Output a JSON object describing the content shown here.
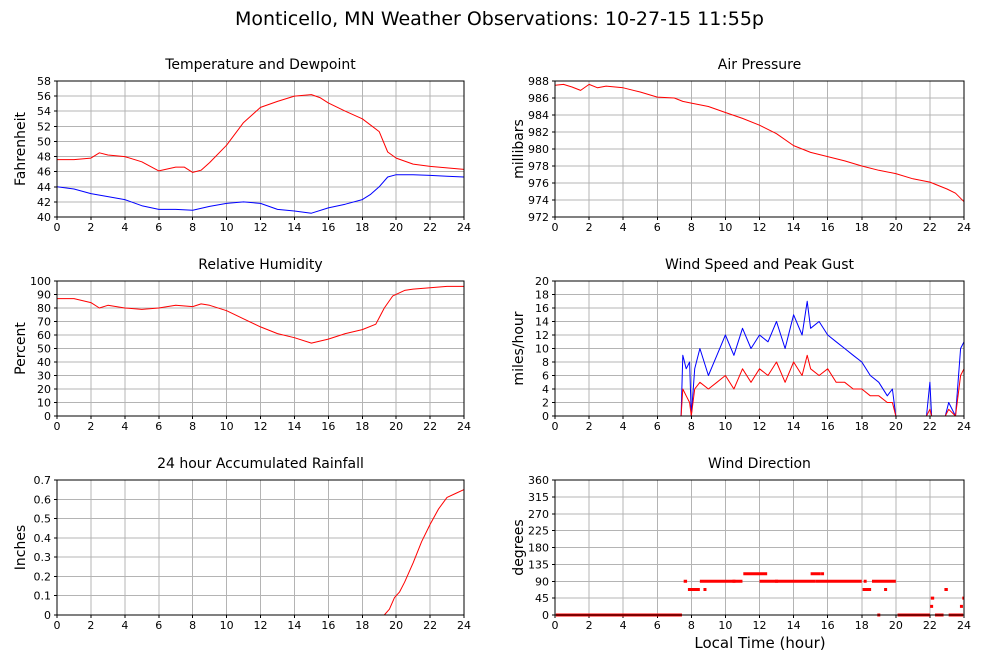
{
  "page": {
    "title": "Monticello, MN Weather Observations: 10-27-15 11:55p",
    "xcaption": "Local Time (hour)"
  },
  "colors": {
    "primary": "#ff0000",
    "secondary": "#0000ff",
    "grid": "#b4b4b4"
  },
  "chart_data": [
    {
      "id": "temp",
      "type": "line",
      "title": "Temperature and Dewpoint",
      "xlabel": "",
      "ylabel": "Fahrenheit",
      "xlim": [
        0,
        24
      ],
      "ylim": [
        40,
        58
      ],
      "xticks": [
        0,
        2,
        4,
        6,
        8,
        10,
        12,
        14,
        16,
        18,
        20,
        22,
        24
      ],
      "yticks": [
        40,
        42,
        44,
        46,
        48,
        50,
        52,
        54,
        56,
        58
      ],
      "grid": true,
      "series": [
        {
          "color": "#ff0000",
          "x": [
            0,
            1,
            2,
            2.5,
            3,
            4,
            5,
            6,
            7,
            7.5,
            8,
            8.5,
            9,
            10,
            11,
            12,
            13,
            14,
            15,
            15.5,
            16,
            17,
            18,
            19,
            19.5,
            20,
            21,
            22,
            23,
            24
          ],
          "y": [
            47.6,
            47.6,
            47.8,
            48.5,
            48.2,
            48.0,
            47.3,
            46.1,
            46.6,
            46.6,
            45.9,
            46.2,
            47.2,
            49.5,
            52.5,
            54.5,
            55.3,
            56.0,
            56.2,
            55.8,
            55.1,
            54.0,
            53.0,
            51.3,
            48.6,
            47.8,
            47.0,
            46.7,
            46.5,
            46.3
          ]
        },
        {
          "color": "#0000ff",
          "x": [
            0,
            1,
            2,
            3,
            4,
            5,
            6,
            7,
            8,
            9,
            10,
            11,
            12,
            13,
            14,
            15,
            16,
            17,
            18,
            18.5,
            19,
            19.5,
            20,
            21,
            22,
            23,
            24
          ],
          "y": [
            44.0,
            43.7,
            43.1,
            42.7,
            42.3,
            41.5,
            41.0,
            41.0,
            40.9,
            41.4,
            41.8,
            42.0,
            41.8,
            41.0,
            40.8,
            40.5,
            41.2,
            41.7,
            42.3,
            43.0,
            44.0,
            45.3,
            45.6,
            45.6,
            45.5,
            45.4,
            45.3
          ]
        }
      ]
    },
    {
      "id": "pressure",
      "type": "line",
      "title": "Air Pressure",
      "xlabel": "",
      "ylabel": "millibars",
      "xlim": [
        0,
        24
      ],
      "ylim": [
        972,
        988
      ],
      "xticks": [
        0,
        2,
        4,
        6,
        8,
        10,
        12,
        14,
        16,
        18,
        20,
        22,
        24
      ],
      "yticks": [
        972,
        974,
        976,
        978,
        980,
        982,
        984,
        986,
        988
      ],
      "grid": true,
      "series": [
        {
          "color": "#ff0000",
          "x": [
            0,
            0.5,
            1,
            1.5,
            2,
            2.5,
            3,
            4,
            5,
            6,
            7,
            7.5,
            8,
            9,
            10,
            11,
            12,
            13,
            14,
            15,
            16,
            17,
            18,
            19,
            20,
            21,
            22,
            23,
            23.5,
            24
          ],
          "y": [
            987.5,
            987.6,
            987.3,
            986.9,
            987.6,
            987.2,
            987.4,
            987.2,
            986.7,
            986.1,
            986.0,
            985.6,
            985.4,
            985.0,
            984.3,
            983.6,
            982.8,
            981.8,
            980.4,
            979.6,
            979.1,
            978.6,
            978.0,
            977.5,
            977.1,
            976.5,
            976.1,
            975.3,
            974.8,
            973.8
          ]
        }
      ]
    },
    {
      "id": "humidity",
      "type": "line",
      "title": "Relative Humidity",
      "xlabel": "",
      "ylabel": "Percent",
      "xlim": [
        0,
        24
      ],
      "ylim": [
        0,
        100
      ],
      "xticks": [
        0,
        2,
        4,
        6,
        8,
        10,
        12,
        14,
        16,
        18,
        20,
        22,
        24
      ],
      "yticks": [
        0,
        10,
        20,
        30,
        40,
        50,
        60,
        70,
        80,
        90,
        100
      ],
      "grid": true,
      "series": [
        {
          "color": "#ff0000",
          "x": [
            0,
            1,
            2,
            2.5,
            3,
            4,
            5,
            6,
            7,
            8,
            8.5,
            9,
            10,
            11,
            12,
            13,
            14,
            15,
            16,
            17,
            18,
            18.8,
            19.3,
            19.8,
            20.5,
            21,
            22,
            23,
            24
          ],
          "y": [
            87,
            87,
            84,
            80,
            82,
            80,
            79,
            80,
            82,
            81,
            83,
            82,
            78,
            72,
            66,
            61,
            58,
            54,
            57,
            61,
            64,
            68,
            80,
            89,
            93,
            94,
            95,
            96,
            96
          ]
        }
      ]
    },
    {
      "id": "wind",
      "type": "line",
      "title": "Wind Speed and Peak Gust",
      "xlabel": "",
      "ylabel": "miles/hour",
      "xlim": [
        0,
        24
      ],
      "ylim": [
        0,
        20
      ],
      "xticks": [
        0,
        2,
        4,
        6,
        8,
        10,
        12,
        14,
        16,
        18,
        20,
        22,
        24
      ],
      "yticks": [
        0,
        2,
        4,
        6,
        8,
        10,
        12,
        14,
        16,
        18,
        20
      ],
      "grid": true,
      "series": [
        {
          "color": "#0000ff",
          "x": [
            0,
            7.4,
            7.5,
            7.7,
            7.9,
            8.0,
            8.2,
            8.5,
            9,
            9.5,
            10,
            10.5,
            11,
            11.5,
            12,
            12.5,
            13,
            13.5,
            14,
            14.5,
            14.8,
            15,
            15.5,
            16,
            16.5,
            17,
            17.5,
            18,
            18.5,
            19,
            19.5,
            19.8,
            20,
            21.8,
            22,
            22.1,
            22.9,
            23.1,
            23.5,
            23.8,
            24
          ],
          "y": [
            0,
            0,
            9,
            7,
            8,
            0,
            7,
            10,
            6,
            9,
            12,
            9,
            13,
            10,
            12,
            11,
            14,
            10,
            15,
            12,
            17,
            13,
            14,
            12,
            11,
            10,
            9,
            8,
            6,
            5,
            3,
            4,
            0,
            0,
            5,
            0,
            0,
            2,
            0,
            10,
            11
          ]
        },
        {
          "color": "#ff0000",
          "x": [
            0,
            7.4,
            7.5,
            7.7,
            7.9,
            8.0,
            8.2,
            8.5,
            9,
            9.5,
            10,
            10.5,
            11,
            11.5,
            12,
            12.5,
            13,
            13.5,
            14,
            14.5,
            14.8,
            15,
            15.5,
            16,
            16.5,
            17,
            17.5,
            18,
            18.5,
            19,
            19.5,
            19.8,
            20,
            21.8,
            22,
            22.1,
            22.9,
            23.1,
            23.5,
            23.8,
            24
          ],
          "y": [
            0,
            0,
            4,
            3,
            2,
            0,
            4,
            5,
            4,
            5,
            6,
            4,
            7,
            5,
            7,
            6,
            8,
            5,
            8,
            6,
            9,
            7,
            6,
            7,
            5,
            5,
            4,
            4,
            3,
            3,
            2,
            2,
            0,
            0,
            1,
            0,
            0,
            1,
            0,
            6,
            7
          ]
        }
      ]
    },
    {
      "id": "rain",
      "type": "line",
      "title": "24 hour Accumulated Rainfall",
      "xlabel": "",
      "ylabel": "Inches",
      "xlim": [
        0,
        24
      ],
      "ylim": [
        0,
        0.7
      ],
      "xticks": [
        0,
        2,
        4,
        6,
        8,
        10,
        12,
        14,
        16,
        18,
        20,
        22,
        24
      ],
      "yticks": [
        0,
        0.1,
        0.2,
        0.3,
        0.4,
        0.5,
        0.6,
        0.7
      ],
      "grid": true,
      "series": [
        {
          "color": "#ff0000",
          "x": [
            0,
            19.3,
            19.6,
            19.9,
            20.2,
            20.5,
            21,
            21.5,
            22,
            22.5,
            23,
            23.5,
            24
          ],
          "y": [
            0,
            0,
            0.03,
            0.09,
            0.12,
            0.17,
            0.27,
            0.38,
            0.47,
            0.55,
            0.61,
            0.63,
            0.65
          ]
        }
      ]
    },
    {
      "id": "direction",
      "type": "scatter",
      "title": "Wind Direction",
      "xlabel": "Local Time (hour)",
      "ylabel": "degrees",
      "xlim": [
        0,
        24
      ],
      "ylim": [
        0,
        360
      ],
      "xticks": [
        0,
        2,
        4,
        6,
        8,
        10,
        12,
        14,
        16,
        18,
        20,
        22,
        24
      ],
      "yticks": [
        0,
        45,
        90,
        135,
        180,
        225,
        270,
        315,
        360
      ],
      "grid": true,
      "series": [
        {
          "color": "#ff0000",
          "segments": [
            [
              0.05,
              7.45,
              0
            ],
            [
              7.55,
              7.75,
              90
            ],
            [
              7.8,
              8.5,
              68
            ],
            [
              8.5,
              11.0,
              90
            ],
            [
              11.05,
              12.45,
              110
            ],
            [
              12.0,
              15.3,
              90
            ],
            [
              15.0,
              15.6,
              110
            ],
            [
              15.3,
              18.0,
              90
            ],
            [
              18.05,
              18.55,
              68
            ],
            [
              18.6,
              20.0,
              90
            ],
            [
              20.1,
              22.0,
              0
            ],
            [
              22.05,
              22.25,
              45
            ],
            [
              22.3,
              22.8,
              0
            ],
            [
              22.85,
              23.05,
              68
            ],
            [
              23.1,
              23.95,
              0
            ],
            [
              23.9,
              24.0,
              45
            ]
          ],
          "points": [
            [
              8.8,
              68
            ],
            [
              10.5,
              90
            ],
            [
              13.0,
              90
            ],
            [
              15.7,
              110
            ],
            [
              18.2,
              90
            ],
            [
              19.0,
              0
            ],
            [
              19.4,
              68
            ],
            [
              22.1,
              23
            ],
            [
              23.85,
              23
            ]
          ]
        }
      ]
    }
  ]
}
